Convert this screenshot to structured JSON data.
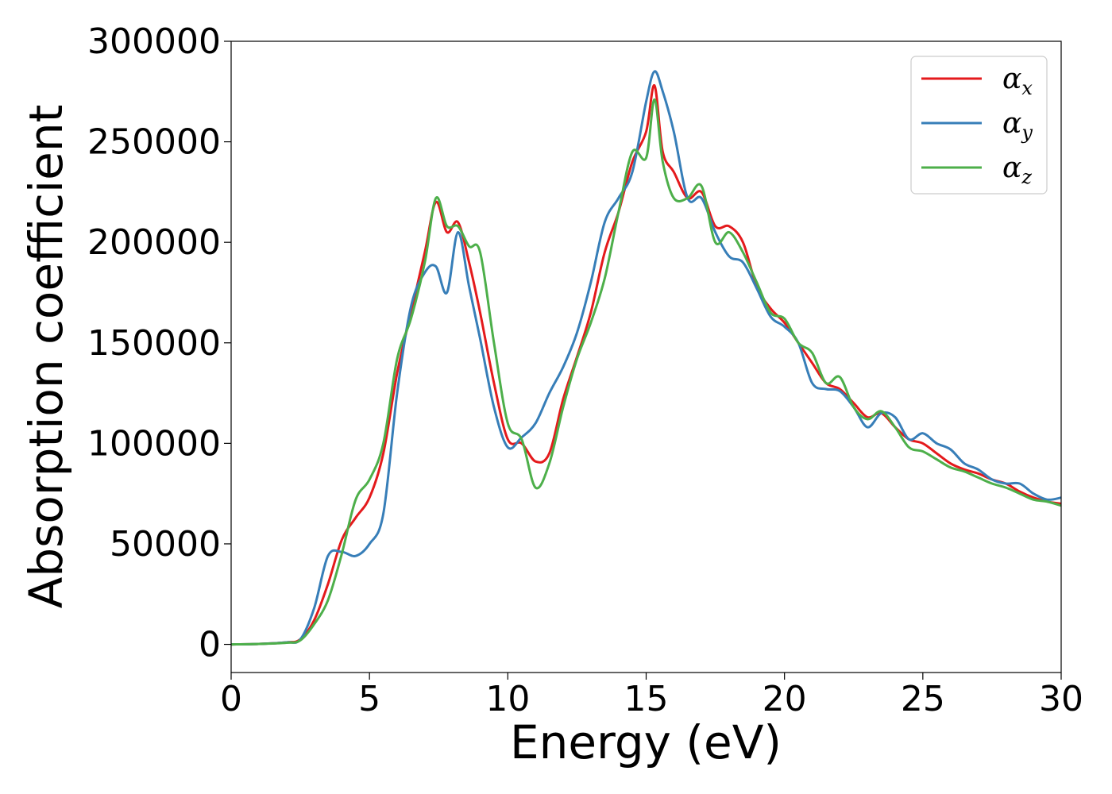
{
  "chart_data": {
    "type": "line",
    "title": "",
    "xlabel": "Energy (eV)",
    "ylabel": "Absorption coefficient",
    "xlim": [
      0,
      30
    ],
    "ylim": [
      -14000,
      300000
    ],
    "xticks": [
      0,
      5,
      10,
      15,
      20,
      25,
      30
    ],
    "yticks": [
      0,
      50000,
      100000,
      150000,
      200000,
      250000,
      300000
    ],
    "grid": false,
    "legend_position": "top-right",
    "series": [
      {
        "name": "α_x",
        "legend_base": "α",
        "legend_sub": "x",
        "color": "#e41a1c",
        "x": [
          0,
          1,
          2,
          2.5,
          3,
          3.5,
          4,
          4.5,
          5,
          5.5,
          6,
          6.5,
          7,
          7.4,
          7.8,
          8.2,
          8.6,
          9,
          9.5,
          10,
          10.5,
          11,
          11.5,
          12,
          12.5,
          13,
          13.5,
          14,
          14.5,
          15,
          15.3,
          15.6,
          16,
          16.5,
          17,
          17.5,
          18,
          18.5,
          19,
          19.5,
          20,
          20.5,
          21,
          21.5,
          22,
          22.5,
          23,
          23.5,
          24,
          24.5,
          25,
          25.5,
          26,
          26.5,
          27,
          27.5,
          28,
          28.5,
          29,
          29.5,
          30
        ],
        "values": [
          0,
          200,
          1000,
          2500,
          12000,
          30000,
          52000,
          63000,
          73000,
          95000,
          135000,
          165000,
          195000,
          220000,
          205000,
          210000,
          190000,
          165000,
          130000,
          102000,
          100000,
          91000,
          95000,
          122000,
          143000,
          165000,
          195000,
          215000,
          240000,
          255000,
          278000,
          245000,
          235000,
          222000,
          225000,
          208000,
          208000,
          200000,
          178000,
          167000,
          160000,
          150000,
          140000,
          130000,
          127000,
          120000,
          113000,
          115000,
          108000,
          102000,
          100000,
          95000,
          90000,
          87000,
          85000,
          82000,
          80000,
          76000,
          73000,
          71000,
          70000
        ]
      },
      {
        "name": "α_y",
        "legend_base": "α",
        "legend_sub": "y",
        "color": "#377eb8",
        "x": [
          0,
          1,
          2,
          2.5,
          3,
          3.5,
          4,
          4.5,
          5,
          5.5,
          6,
          6.5,
          7,
          7.4,
          7.8,
          8.2,
          8.6,
          9,
          9.5,
          10,
          10.5,
          11,
          11.5,
          12,
          12.5,
          13,
          13.5,
          14,
          14.5,
          15,
          15.3,
          15.6,
          16,
          16.5,
          17,
          17.5,
          18,
          18.5,
          19,
          19.5,
          20,
          20.5,
          21,
          21.5,
          22,
          22.5,
          23,
          23.5,
          24,
          24.5,
          25,
          25.5,
          26,
          26.5,
          27,
          27.5,
          28,
          28.5,
          29,
          29.5,
          30
        ],
        "values": [
          0,
          200,
          1000,
          2500,
          18000,
          44000,
          46000,
          44000,
          50000,
          65000,
          125000,
          168000,
          185000,
          188000,
          175000,
          205000,
          178000,
          152000,
          118000,
          98000,
          103000,
          110000,
          125000,
          138000,
          155000,
          180000,
          210000,
          222000,
          235000,
          270000,
          285000,
          275000,
          255000,
          222000,
          222000,
          205000,
          193000,
          190000,
          177000,
          163000,
          158000,
          150000,
          130000,
          127000,
          126000,
          118000,
          108000,
          115000,
          113000,
          102000,
          105000,
          100000,
          97000,
          90000,
          87000,
          82000,
          80000,
          80000,
          75000,
          72000,
          73000
        ]
      },
      {
        "name": "α_z",
        "legend_base": "α",
        "legend_sub": "z",
        "color": "#4daf4a",
        "x": [
          0,
          1,
          2,
          2.5,
          3,
          3.5,
          4,
          4.5,
          5,
          5.5,
          6,
          6.5,
          7,
          7.4,
          7.8,
          8.2,
          8.6,
          9,
          9.5,
          10,
          10.5,
          11,
          11.5,
          12,
          12.5,
          13,
          13.5,
          14,
          14.5,
          15,
          15.3,
          15.6,
          16,
          16.5,
          17,
          17.5,
          18,
          18.5,
          19,
          19.5,
          20,
          20.5,
          21,
          21.5,
          22,
          22.5,
          23,
          23.5,
          24,
          24.5,
          25,
          25.5,
          26,
          26.5,
          27,
          27.5,
          28,
          28.5,
          29,
          29.5,
          30
        ],
        "values": [
          0,
          200,
          800,
          2000,
          10000,
          22000,
          45000,
          72000,
          82000,
          100000,
          142000,
          162000,
          190000,
          222000,
          208000,
          208000,
          198000,
          195000,
          150000,
          110000,
          102000,
          78000,
          90000,
          118000,
          142000,
          160000,
          182000,
          215000,
          245000,
          242000,
          271000,
          240000,
          222000,
          222000,
          228000,
          200000,
          205000,
          195000,
          180000,
          165000,
          162000,
          150000,
          145000,
          130000,
          133000,
          118000,
          112000,
          116000,
          108000,
          98000,
          96000,
          92000,
          88000,
          86000,
          83000,
          80000,
          78000,
          75000,
          72000,
          71000,
          69000
        ]
      }
    ]
  }
}
